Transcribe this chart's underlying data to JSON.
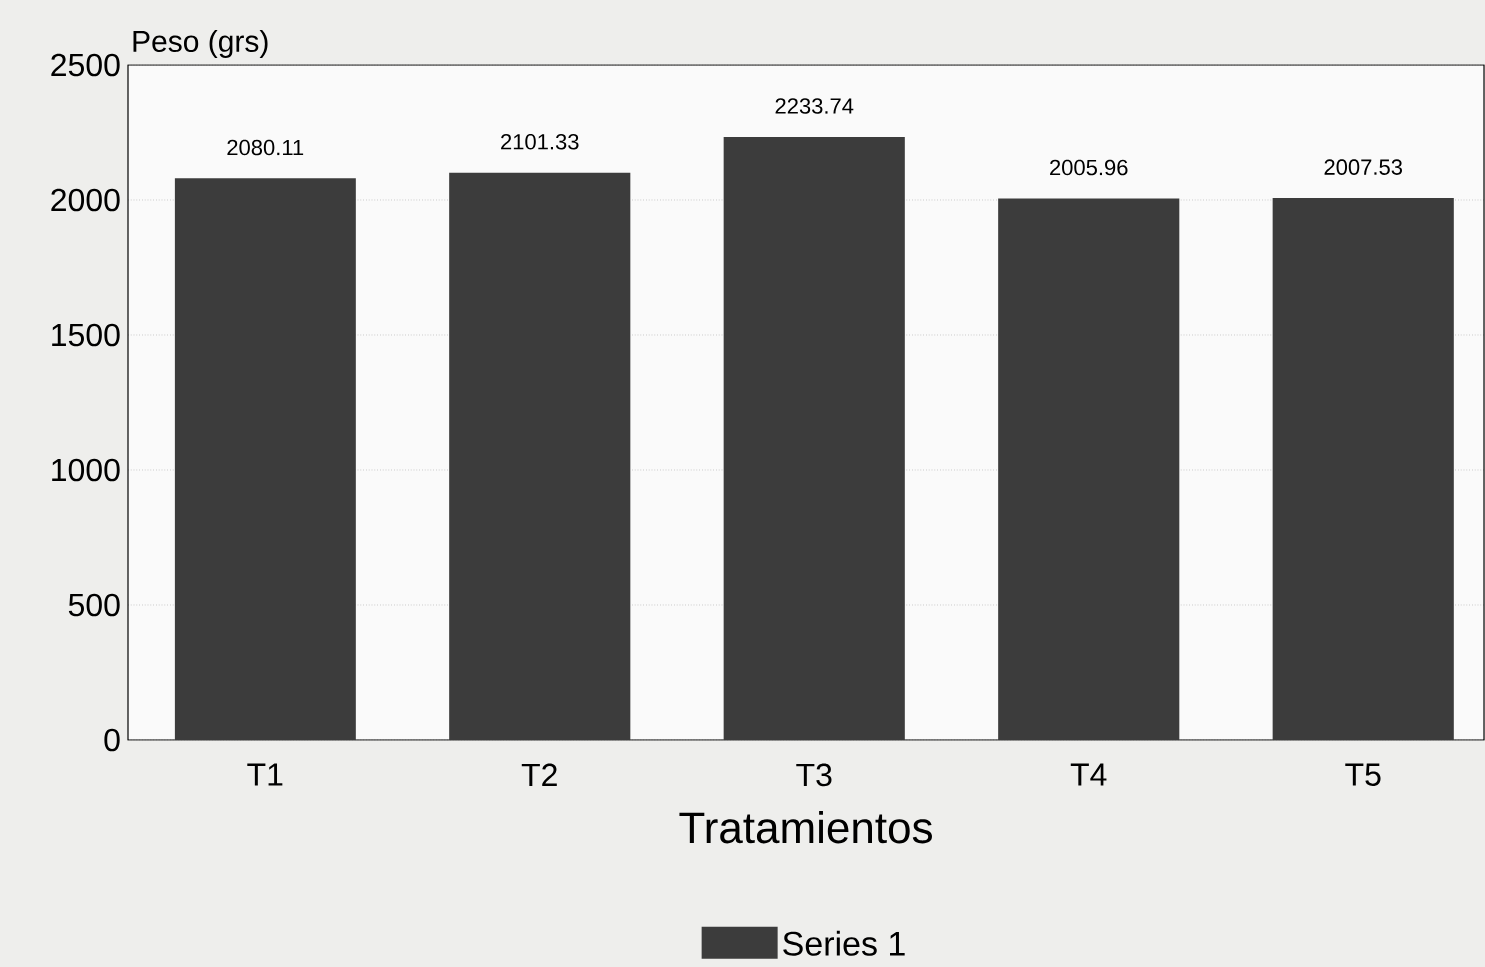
{
  "chart_data": {
    "type": "bar",
    "ylabel": "Peso (grs)",
    "xlabel": "Tratamientos",
    "categories": [
      "T1",
      "T2",
      "T3",
      "T4",
      "T5"
    ],
    "series": [
      {
        "name": "Series 1",
        "color": "#3c3c3c",
        "values": [
          2080.11,
          2101.33,
          2233.74,
          2005.96,
          2007.53
        ]
      }
    ],
    "ylim": [
      0,
      2500
    ],
    "yticks": [
      0,
      500,
      1000,
      1500,
      2000,
      2500
    ],
    "grid": "y",
    "data_labels": true,
    "legend": "bottom"
  }
}
